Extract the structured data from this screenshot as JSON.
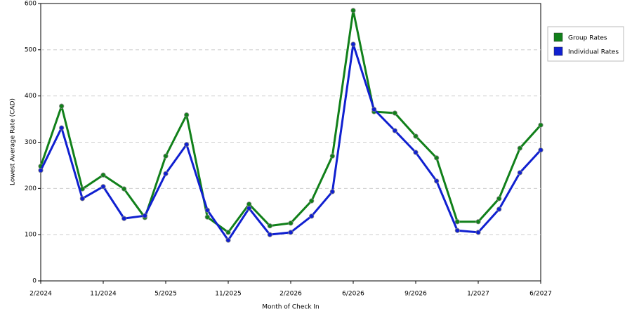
{
  "chart_data": {
    "type": "line",
    "x_label": "Month of Check In",
    "y_label": "Lowest Average Rate (CAD)",
    "categories": [
      "2/2024",
      null,
      null,
      "11/2024",
      null,
      null,
      "5/2025",
      null,
      null,
      "11/2025",
      null,
      null,
      "2/2026",
      null,
      null,
      "6/2026",
      null,
      null,
      "9/2026",
      null,
      null,
      "1/2027",
      null,
      null,
      "6/2027"
    ],
    "series": [
      {
        "name": "Group Rates",
        "color": "#11801a",
        "values": [
          248,
          378,
          199,
          229,
          199,
          137,
          270,
          359,
          138,
          105,
          166,
          119,
          125,
          173,
          270,
          585,
          366,
          363,
          313,
          266,
          128,
          128,
          178,
          287,
          337
        ]
      },
      {
        "name": "Individual Rates",
        "color": "#1020d0",
        "values": [
          239,
          331,
          178,
          204,
          135,
          141,
          232,
          295,
          153,
          88,
          157,
          100,
          105,
          140,
          193,
          512,
          371,
          325,
          278,
          216,
          109,
          105,
          155,
          234,
          283
        ]
      }
    ],
    "ylim": [
      0,
      600
    ],
    "yticks": [
      0,
      100,
      200,
      300,
      400,
      500,
      600
    ],
    "grid": true,
    "legend": "right"
  }
}
